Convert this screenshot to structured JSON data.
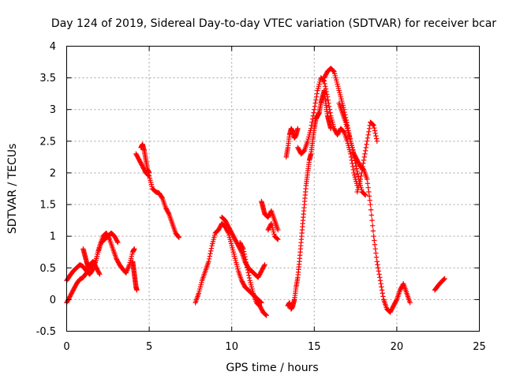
{
  "chart_data": {
    "type": "scatter",
    "title": "Day 124 of 2019, Sidereal Day-to-day VTEC variation (SDTVAR) for receiver bcar",
    "xlabel": "GPS time / hours",
    "ylabel": "SDTVAR / TECUs",
    "xlim": [
      0,
      25
    ],
    "ylim": [
      -0.5,
      4
    ],
    "xticks": [
      "0",
      "5",
      "10",
      "15",
      "20",
      "25"
    ],
    "yticks": [
      "-0.5",
      "0",
      "0.5",
      "1",
      "1.5",
      "2",
      "2.5",
      "3",
      "3.5",
      "4"
    ],
    "grid": true,
    "marker": "+",
    "color": "#ff0000",
    "series": [
      {
        "name": "seg1",
        "x": [
          0.0,
          0.2,
          0.4,
          0.6,
          0.8,
          1.0,
          1.2,
          1.4,
          1.6,
          1.8,
          2.0,
          2.2,
          2.4,
          2.6,
          2.8,
          3.0,
          3.2,
          3.4,
          3.6,
          3.8,
          4.0,
          4.1
        ],
        "y": [
          0.3,
          0.38,
          0.45,
          0.5,
          0.55,
          0.52,
          0.45,
          0.4,
          0.48,
          0.65,
          0.85,
          1.0,
          1.05,
          0.95,
          0.8,
          0.65,
          0.55,
          0.48,
          0.42,
          0.55,
          0.75,
          0.8
        ]
      },
      {
        "name": "seg2",
        "x": [
          0.0,
          0.2,
          0.4,
          0.6,
          0.8,
          1.0,
          1.2,
          1.4,
          1.6,
          1.8,
          2.0
        ],
        "y": [
          -0.05,
          0.05,
          0.15,
          0.25,
          0.32,
          0.35,
          0.42,
          0.55,
          0.6,
          0.5,
          0.4
        ]
      },
      {
        "name": "seg3",
        "x": [
          1.0,
          1.1,
          1.2,
          1.3,
          1.5,
          1.7,
          1.9,
          2.1,
          2.3,
          2.5,
          2.7,
          2.9,
          3.1
        ],
        "y": [
          0.8,
          0.7,
          0.6,
          0.52,
          0.5,
          0.55,
          0.75,
          0.9,
          0.95,
          1.0,
          1.05,
          1.0,
          0.9
        ]
      },
      {
        "name": "seg4",
        "x": [
          4.0,
          4.05,
          4.1,
          4.15,
          4.2,
          4.25
        ],
        "y": [
          0.6,
          0.5,
          0.4,
          0.3,
          0.2,
          0.15
        ]
      },
      {
        "name": "seg5",
        "x": [
          4.2,
          4.4,
          4.6,
          4.8,
          5.0,
          5.2,
          5.4,
          5.6,
          5.8,
          6.0,
          6.2,
          6.4,
          6.6,
          6.8
        ],
        "y": [
          2.3,
          2.2,
          2.1,
          2.0,
          1.95,
          1.75,
          1.7,
          1.68,
          1.6,
          1.45,
          1.35,
          1.2,
          1.05,
          0.98
        ]
      },
      {
        "name": "seg6",
        "x": [
          4.5,
          4.6,
          4.7,
          4.8,
          4.9,
          5.0
        ],
        "y": [
          2.4,
          2.45,
          2.35,
          2.2,
          2.05,
          2.0
        ]
      },
      {
        "name": "seg7",
        "x": [
          7.8,
          8.0,
          8.2,
          8.4,
          8.6,
          8.8,
          9.0,
          9.2,
          9.4,
          9.6,
          9.8,
          10.0,
          10.2,
          10.4,
          10.6,
          10.8,
          11.0,
          11.2,
          11.4,
          11.6,
          11.8
        ],
        "y": [
          -0.05,
          0.1,
          0.3,
          0.45,
          0.6,
          0.85,
          1.05,
          1.1,
          1.2,
          1.15,
          1.05,
          0.85,
          0.65,
          0.45,
          0.3,
          0.2,
          0.15,
          0.1,
          0.05,
          0.0,
          -0.05
        ]
      },
      {
        "name": "seg8",
        "x": [
          9.4,
          9.6,
          9.8,
          10.0,
          10.2,
          10.4,
          10.6,
          10.8,
          11.0,
          11.2,
          11.4,
          11.6,
          11.8,
          12.0
        ],
        "y": [
          1.3,
          1.25,
          1.15,
          1.05,
          0.95,
          0.85,
          0.75,
          0.6,
          0.5,
          0.45,
          0.4,
          0.35,
          0.45,
          0.55
        ]
      },
      {
        "name": "seg9",
        "x": [
          10.5,
          10.7,
          10.9,
          11.1,
          11.3,
          11.5,
          11.7,
          11.9,
          12.1
        ],
        "y": [
          0.9,
          0.8,
          0.55,
          0.3,
          0.1,
          -0.05,
          -0.1,
          -0.2,
          -0.25
        ]
      },
      {
        "name": "seg10",
        "x": [
          11.8,
          11.9,
          12.0,
          12.2,
          12.4,
          12.6,
          12.8
        ],
        "y": [
          1.55,
          1.45,
          1.35,
          1.3,
          1.4,
          1.25,
          1.1
        ]
      },
      {
        "name": "seg11",
        "x": [
          12.2,
          12.4,
          12.6,
          12.8
        ],
        "y": [
          1.1,
          1.2,
          1.0,
          0.95
        ]
      },
      {
        "name": "seg12",
        "x": [
          13.3,
          13.4,
          13.5,
          13.6,
          13.7,
          13.8,
          13.9,
          14.0
        ],
        "y": [
          2.25,
          2.4,
          2.6,
          2.7,
          2.65,
          2.55,
          2.6,
          2.7
        ]
      },
      {
        "name": "seg13",
        "x": [
          13.4,
          13.5,
          13.6,
          13.7,
          13.8,
          13.9,
          14.0,
          14.1,
          14.2,
          14.3,
          14.4,
          14.5,
          14.6,
          14.7,
          14.8,
          14.9,
          15.0,
          15.1,
          15.2,
          15.3,
          15.4,
          15.5,
          15.6,
          15.7,
          15.8,
          15.9,
          16.0
        ],
        "y": [
          -0.1,
          -0.05,
          -0.15,
          -0.1,
          0.0,
          0.2,
          0.35,
          0.6,
          0.9,
          1.2,
          1.5,
          1.8,
          2.0,
          2.2,
          2.3,
          2.5,
          2.7,
          2.85,
          2.9,
          2.95,
          3.1,
          3.2,
          3.3,
          3.1,
          2.9,
          2.8,
          2.7
        ]
      },
      {
        "name": "seg14",
        "x": [
          14.0,
          14.2,
          14.4,
          14.6,
          14.8,
          15.0,
          15.2,
          15.4,
          15.6,
          15.8,
          16.0,
          16.2,
          16.4,
          16.6,
          16.8,
          17.0,
          17.2,
          17.4,
          17.6
        ],
        "y": [
          2.4,
          2.3,
          2.35,
          2.5,
          2.7,
          3.0,
          3.3,
          3.5,
          3.45,
          3.2,
          2.9,
          2.7,
          2.6,
          2.7,
          2.65,
          2.5,
          2.3,
          2.0,
          1.8
        ]
      },
      {
        "name": "seg15",
        "x": [
          15.6,
          15.8,
          16.0,
          16.2,
          16.4,
          16.6,
          16.8,
          17.0,
          17.2,
          17.4,
          17.6,
          17.8,
          18.0,
          18.2,
          18.4,
          18.6,
          18.8,
          19.0,
          19.2,
          19.4,
          19.6,
          19.8,
          20.0,
          20.2,
          20.4,
          20.6,
          20.8
        ],
        "y": [
          3.5,
          3.6,
          3.65,
          3.6,
          3.4,
          3.2,
          3.0,
          2.75,
          2.5,
          2.3,
          2.2,
          2.1,
          2.05,
          1.9,
          1.5,
          1.0,
          0.6,
          0.3,
          0.0,
          -0.15,
          -0.2,
          -0.1,
          0.0,
          0.15,
          0.25,
          0.1,
          -0.05
        ]
      },
      {
        "name": "seg16",
        "x": [
          16.5,
          16.7,
          16.9,
          17.1,
          17.3,
          17.5,
          17.7,
          17.9,
          18.1
        ],
        "y": [
          3.1,
          2.95,
          2.8,
          2.6,
          2.4,
          2.15,
          1.9,
          1.7,
          1.65
        ]
      },
      {
        "name": "seg17",
        "x": [
          17.6,
          17.8,
          18.0,
          18.2,
          18.4,
          18.6,
          18.8
        ],
        "y": [
          1.7,
          1.9,
          2.2,
          2.5,
          2.8,
          2.75,
          2.5
        ]
      },
      {
        "name": "seg18",
        "x": [
          22.3,
          22.5,
          22.7,
          22.9
        ],
        "y": [
          0.15,
          0.22,
          0.28,
          0.33
        ]
      }
    ]
  }
}
